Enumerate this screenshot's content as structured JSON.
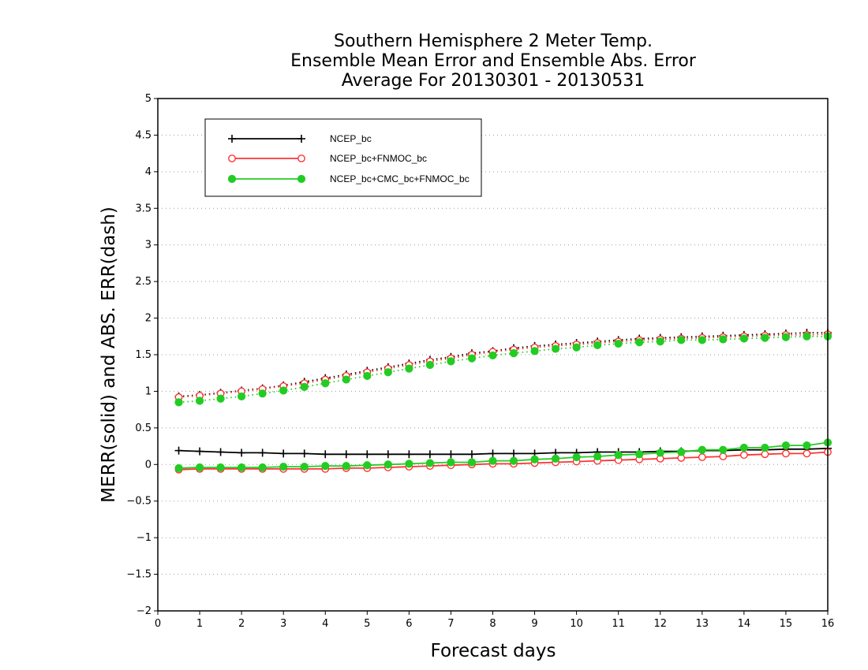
{
  "chart_data": {
    "type": "line",
    "title_lines": [
      "Southern Hemisphere 2 Meter Temp.",
      "Ensemble Mean Error and Ensemble Abs. Error",
      "Average For 20130301 - 20130531"
    ],
    "xlabel": "Forecast days",
    "ylabel": "MERR(solid) and ABS. ERR(dash)",
    "xlim": [
      0,
      16
    ],
    "ylim": [
      -2,
      5
    ],
    "x_ticks": [
      0,
      1,
      2,
      3,
      4,
      5,
      6,
      7,
      8,
      9,
      10,
      11,
      12,
      13,
      14,
      15,
      16
    ],
    "y_ticks": [
      -2,
      -1.5,
      -1,
      -0.5,
      0,
      0.5,
      1,
      1.5,
      2,
      2.5,
      3,
      3.5,
      4,
      4.5,
      5
    ],
    "y_tick_labels": [
      "−2",
      "−1.5",
      "−1",
      "−0.5",
      "0",
      "0.5",
      "1",
      "1.5",
      "2",
      "2.5",
      "3",
      "3.5",
      "4",
      "4.5",
      "5"
    ],
    "grid": "horizontal dotted",
    "legend_position": "top-left",
    "x": [
      0.5,
      1,
      1.5,
      2,
      2.5,
      3,
      3.5,
      4,
      4.5,
      5,
      5.5,
      6,
      6.5,
      7,
      7.5,
      8,
      8.5,
      9,
      9.5,
      10,
      10.5,
      11,
      11.5,
      12,
      12.5,
      13,
      13.5,
      14,
      14.5,
      15,
      15.5,
      16
    ],
    "series": [
      {
        "name": "NCEP_bc",
        "color": "#000000",
        "marker": "plus",
        "merr": [
          0.19,
          0.18,
          0.17,
          0.16,
          0.16,
          0.15,
          0.15,
          0.14,
          0.14,
          0.14,
          0.14,
          0.14,
          0.14,
          0.14,
          0.14,
          0.15,
          0.15,
          0.15,
          0.16,
          0.16,
          0.17,
          0.17,
          0.17,
          0.18,
          0.18,
          0.19,
          0.19,
          0.2,
          0.2,
          0.21,
          0.21,
          0.22
        ],
        "abs_err": [
          0.93,
          0.95,
          0.98,
          1.01,
          1.04,
          1.08,
          1.13,
          1.18,
          1.23,
          1.28,
          1.33,
          1.38,
          1.43,
          1.47,
          1.52,
          1.55,
          1.59,
          1.62,
          1.64,
          1.66,
          1.68,
          1.7,
          1.72,
          1.73,
          1.74,
          1.75,
          1.76,
          1.77,
          1.78,
          1.79,
          1.8,
          1.8
        ]
      },
      {
        "name": "NCEP_bc+FNMOC_bc",
        "color": "#ff3333",
        "marker": "open-circle",
        "merr": [
          -0.07,
          -0.06,
          -0.06,
          -0.06,
          -0.06,
          -0.06,
          -0.06,
          -0.06,
          -0.05,
          -0.05,
          -0.04,
          -0.03,
          -0.02,
          -0.01,
          0.0,
          0.01,
          0.01,
          0.02,
          0.03,
          0.04,
          0.05,
          0.06,
          0.07,
          0.08,
          0.09,
          0.1,
          0.11,
          0.13,
          0.14,
          0.15,
          0.15,
          0.17
        ],
        "abs_err": [
          0.92,
          0.94,
          0.97,
          1.0,
          1.03,
          1.07,
          1.11,
          1.16,
          1.21,
          1.26,
          1.31,
          1.36,
          1.41,
          1.45,
          1.5,
          1.54,
          1.57,
          1.6,
          1.62,
          1.64,
          1.66,
          1.68,
          1.7,
          1.71,
          1.72,
          1.73,
          1.74,
          1.75,
          1.76,
          1.77,
          1.77,
          1.78
        ]
      },
      {
        "name": "NCEP_bc+CMC_bc+FNMOC_bc",
        "color": "#22cc22",
        "marker": "filled-circle",
        "merr": [
          -0.05,
          -0.04,
          -0.04,
          -0.04,
          -0.04,
          -0.03,
          -0.03,
          -0.02,
          -0.02,
          -0.01,
          0.0,
          0.01,
          0.02,
          0.03,
          0.03,
          0.05,
          0.05,
          0.07,
          0.08,
          0.1,
          0.11,
          0.13,
          0.14,
          0.16,
          0.17,
          0.2,
          0.2,
          0.23,
          0.23,
          0.26,
          0.26,
          0.3
        ],
        "abs_err": [
          0.85,
          0.87,
          0.9,
          0.93,
          0.97,
          1.01,
          1.06,
          1.11,
          1.16,
          1.21,
          1.26,
          1.31,
          1.36,
          1.41,
          1.45,
          1.49,
          1.52,
          1.55,
          1.58,
          1.6,
          1.63,
          1.65,
          1.67,
          1.68,
          1.7,
          1.7,
          1.71,
          1.72,
          1.73,
          1.74,
          1.75,
          1.75
        ]
      }
    ]
  }
}
